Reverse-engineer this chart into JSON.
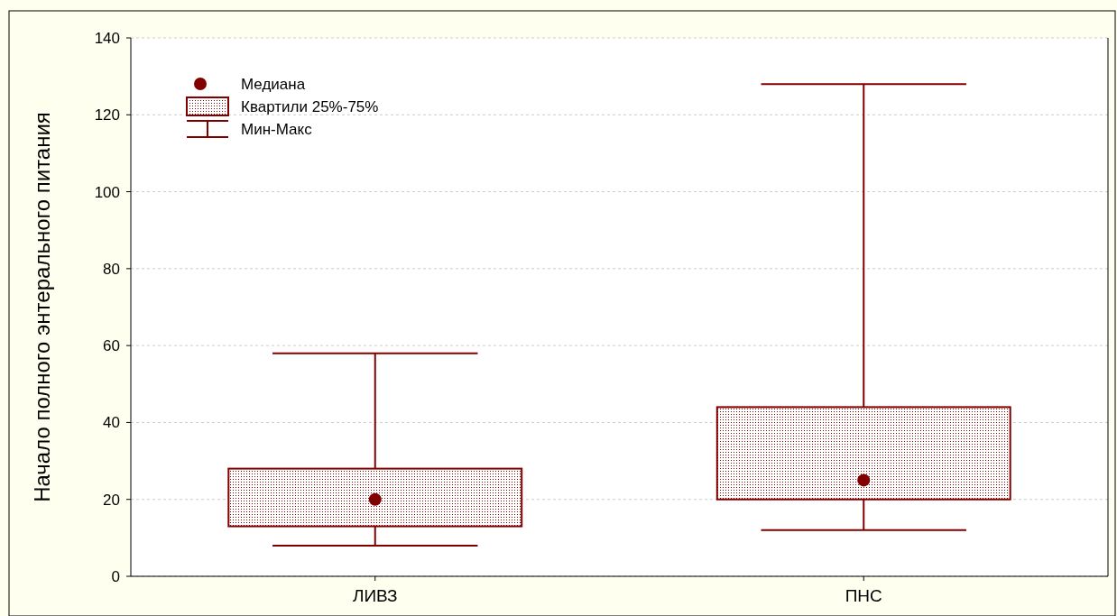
{
  "chart_data": {
    "type": "box",
    "ylabel": "Начало полного энтерального питания",
    "categories": [
      "ЛИВЗ",
      "ПНС"
    ],
    "series": [
      {
        "color": "#800000",
        "boxes": [
          {
            "low": 8,
            "q1": 13,
            "median": 20,
            "q3": 28,
            "high": 58
          },
          {
            "low": 12,
            "q1": 20,
            "median": 25,
            "q3": 44,
            "high": 128
          }
        ]
      }
    ],
    "ylim": [
      0,
      140
    ],
    "yticks": [
      0,
      20,
      40,
      60,
      80,
      100,
      120,
      140
    ],
    "grid": "y",
    "annotations": [
      "Медиана",
      "Квартили 25%-75%",
      "Мин-Макс"
    ]
  }
}
